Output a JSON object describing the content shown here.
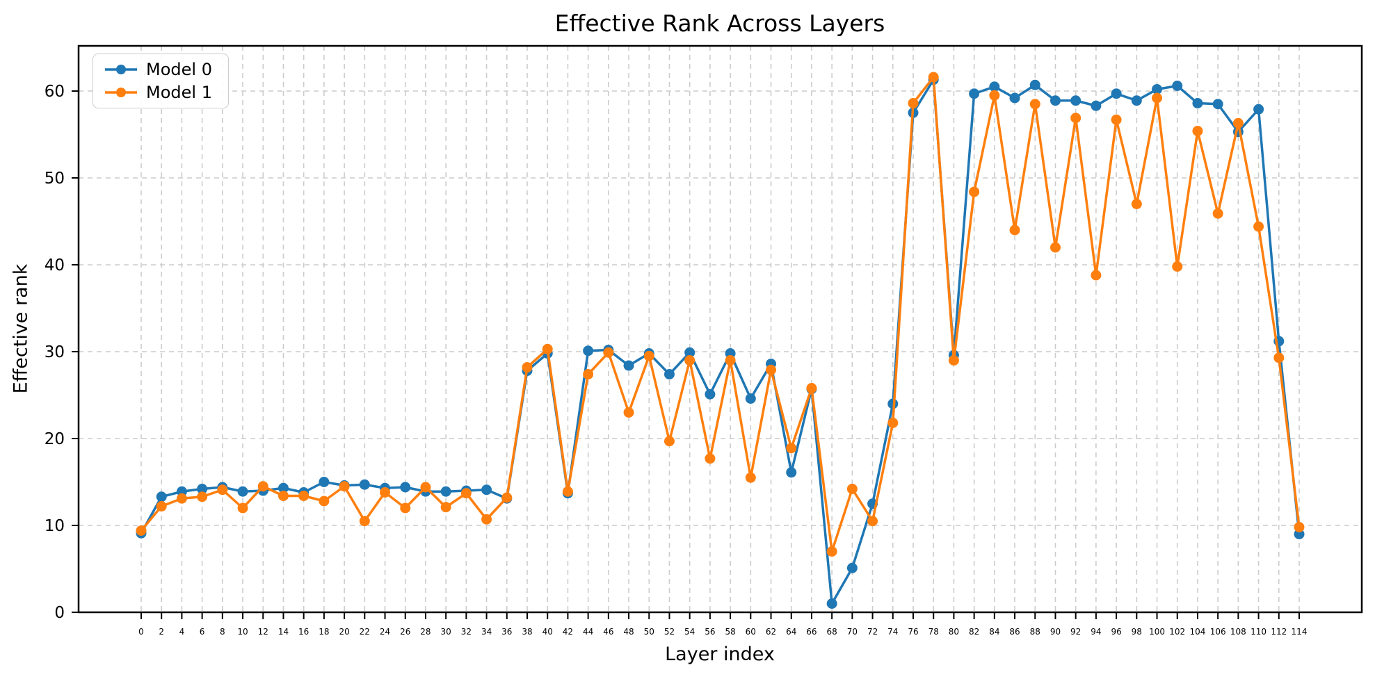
{
  "chart_data": {
    "type": "line",
    "title": "Effective Rank Across Layers",
    "xlabel": "Layer index",
    "ylabel": "Effective rank",
    "grid": true,
    "legend_position": "upper left",
    "ylim": [
      0,
      65.2
    ],
    "yticks": [
      0,
      10,
      20,
      30,
      40,
      50,
      60
    ],
    "x": [
      0,
      2,
      4,
      6,
      8,
      10,
      12,
      14,
      16,
      18,
      20,
      22,
      24,
      26,
      28,
      30,
      32,
      34,
      36,
      38,
      40,
      42,
      44,
      46,
      48,
      50,
      52,
      54,
      56,
      58,
      60,
      62,
      64,
      66,
      68,
      70,
      72,
      74,
      76,
      78,
      80,
      82,
      84,
      86,
      88,
      90,
      92,
      94,
      96,
      98,
      100,
      102,
      104,
      106,
      108,
      110,
      112,
      114
    ],
    "series": [
      {
        "name": "Model 0",
        "color": "#1f77b4",
        "values": [
          9.1,
          13.3,
          13.9,
          14.2,
          14.4,
          13.9,
          14.0,
          14.3,
          13.8,
          15.0,
          14.6,
          14.7,
          14.3,
          14.4,
          13.9,
          13.9,
          14.0,
          14.1,
          13.1,
          27.8,
          29.8,
          13.7,
          30.1,
          30.2,
          28.4,
          29.8,
          27.4,
          29.9,
          25.1,
          29.8,
          24.6,
          28.6,
          16.1,
          25.7,
          1.0,
          5.1,
          12.5,
          24.0,
          57.5,
          61.3,
          29.6,
          59.7,
          60.5,
          59.2,
          60.7,
          58.9,
          58.9,
          58.3,
          59.7,
          58.9,
          60.2,
          60.6,
          58.6,
          58.5,
          55.3,
          57.9,
          31.2,
          9.0
        ]
      },
      {
        "name": "Model 1",
        "color": "#ff7f0e",
        "values": [
          9.4,
          12.2,
          13.1,
          13.3,
          14.1,
          12.0,
          14.5,
          13.4,
          13.4,
          12.8,
          14.5,
          10.5,
          13.8,
          12.0,
          14.4,
          12.1,
          13.7,
          10.7,
          13.2,
          28.2,
          30.3,
          13.9,
          27.4,
          29.9,
          23.0,
          29.5,
          19.7,
          29.0,
          17.7,
          29.0,
          15.5,
          27.9,
          18.9,
          25.8,
          7.0,
          14.2,
          10.5,
          21.8,
          58.6,
          61.6,
          29.0,
          48.4,
          59.5,
          44.0,
          58.5,
          42.0,
          56.9,
          38.8,
          56.7,
          47.0,
          59.2,
          39.8,
          55.4,
          45.9,
          56.3,
          44.4,
          29.3,
          9.8
        ]
      }
    ],
    "style": {
      "grid_color": "#cccccc",
      "spine_color": "#000000",
      "background": "#ffffff"
    }
  }
}
